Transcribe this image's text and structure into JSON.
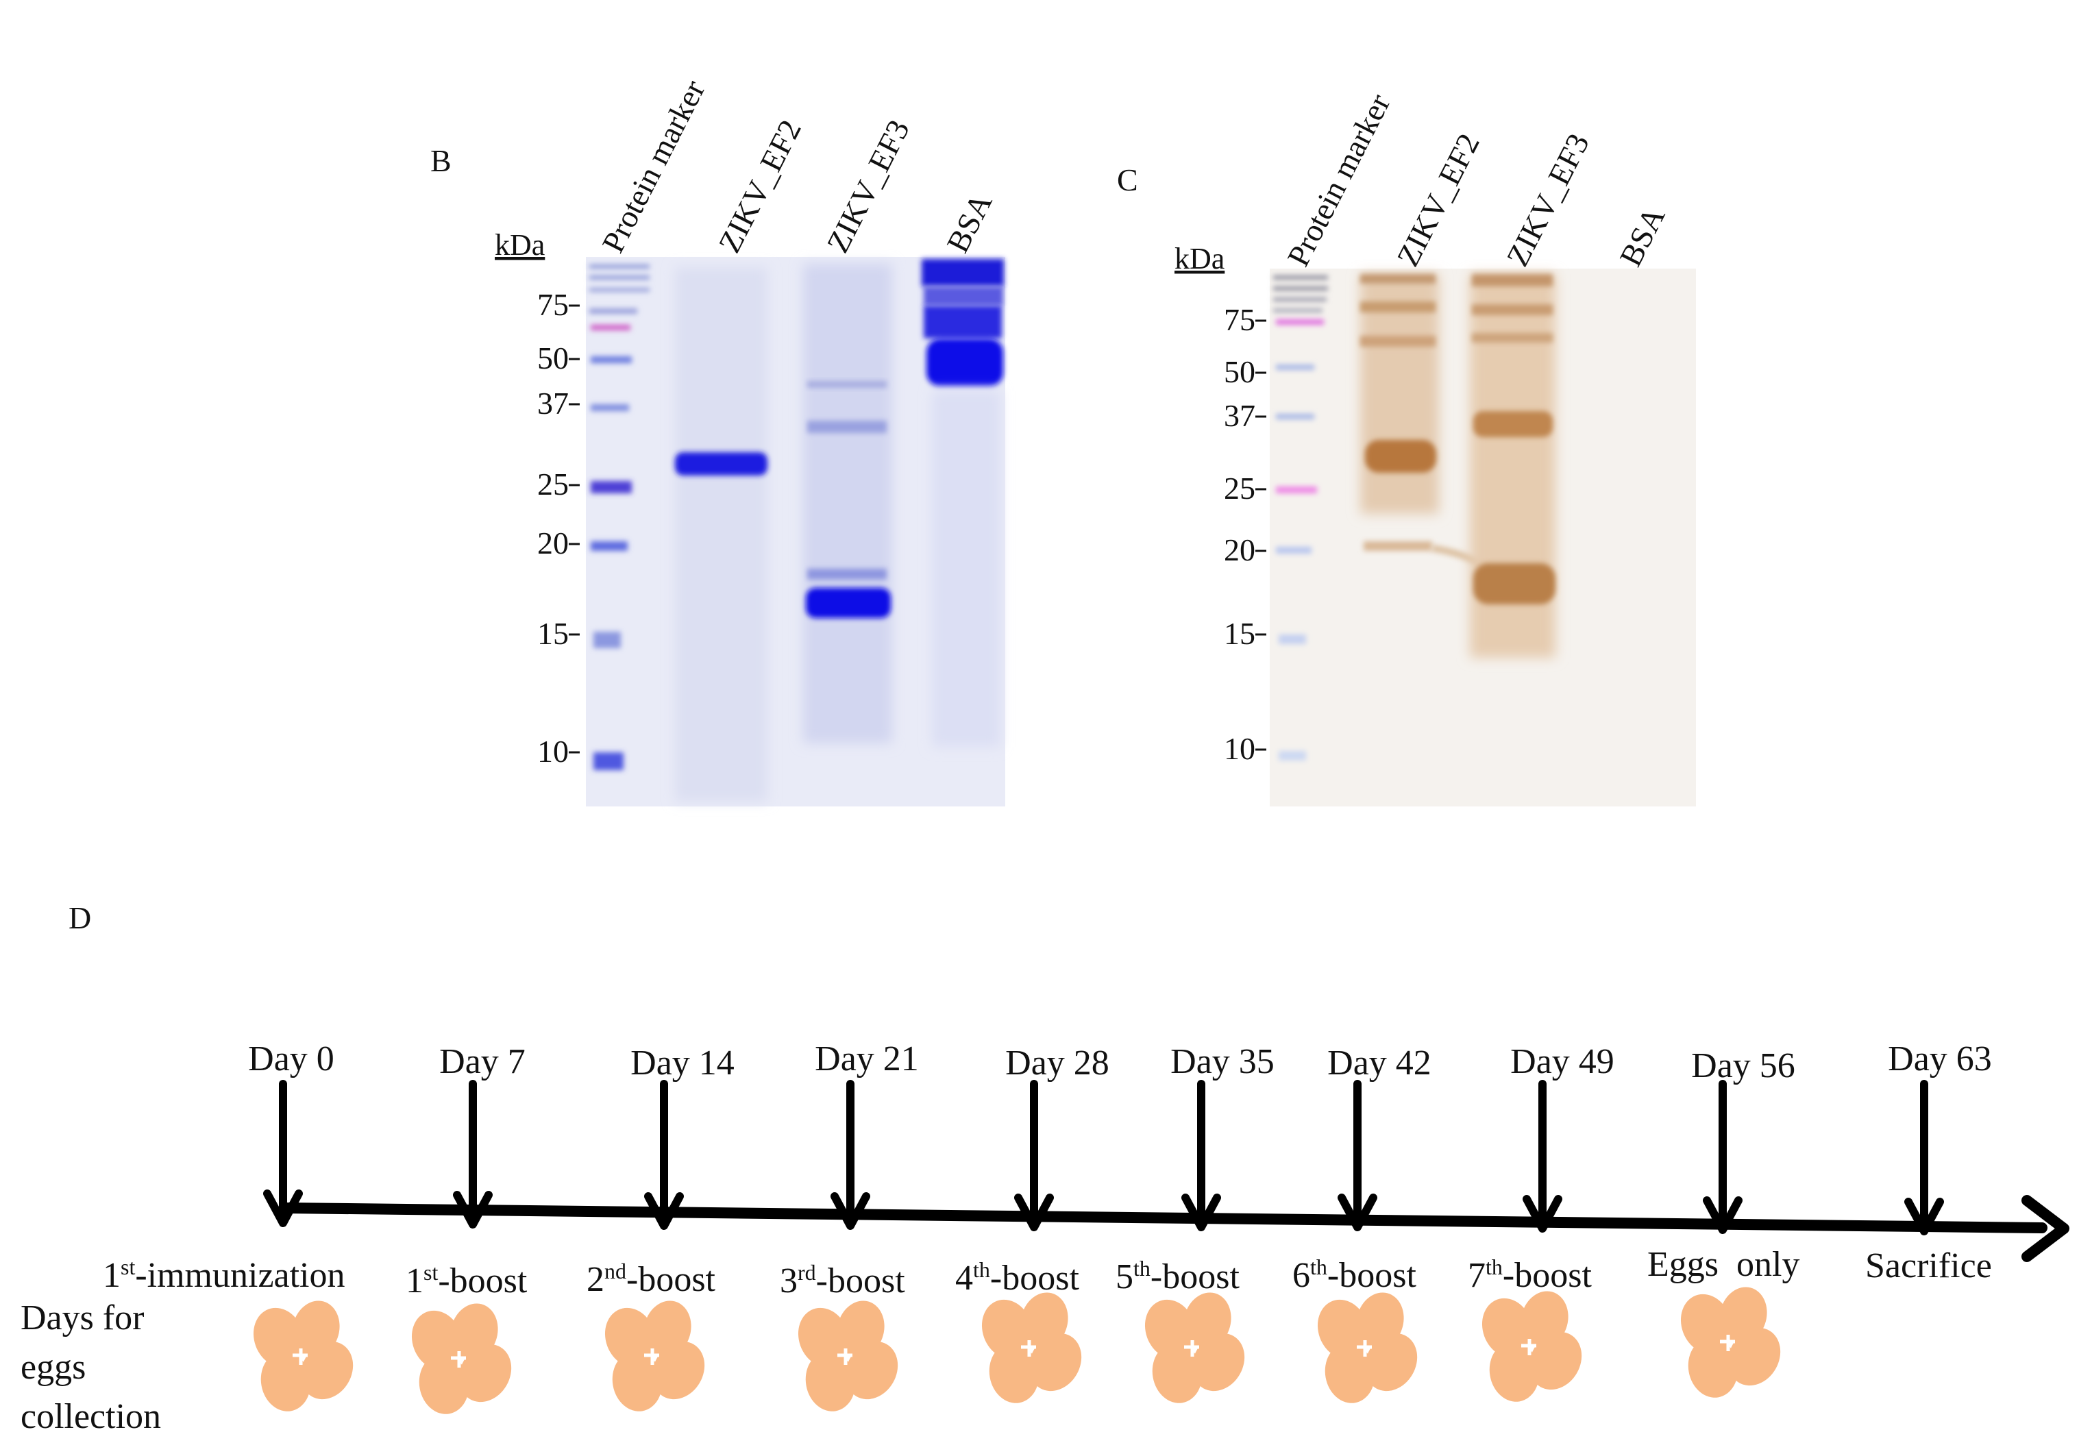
{
  "panels": {
    "B": {
      "letter": "B",
      "unit": "kDa",
      "lanes": [
        "Protein marker",
        "ZIKV_EF2",
        "ZIKV_EF3",
        "BSA"
      ],
      "markers": [
        "75",
        "50",
        "37",
        "25",
        "20",
        "15",
        "10"
      ],
      "stain_color": "#1a1ae0"
    },
    "C": {
      "letter": "C",
      "unit": "kDa",
      "lanes": [
        "Protein marker",
        "ZIKV_EF2",
        "ZIKV_EF3",
        "BSA"
      ],
      "markers": [
        "75",
        "50",
        "37",
        "25",
        "20",
        "15",
        "10"
      ],
      "stain_color": "#b7773e"
    },
    "D": {
      "letter": "D",
      "day_labels": [
        "Day 0",
        "Day 7",
        "Day 14",
        "Day 21",
        "Day 28",
        "Day 35",
        "Day 42",
        "Day 49",
        "Day 56",
        "Day 63"
      ],
      "events": [
        {
          "base": "1",
          "sup": "st",
          "rest": "-immunization"
        },
        {
          "base": "1",
          "sup": "st",
          "rest": "-boost"
        },
        {
          "base": "2",
          "sup": "nd",
          "rest": "-boost"
        },
        {
          "base": "3",
          "sup": "rd",
          "rest": "-boost"
        },
        {
          "base": "4",
          "sup": "th",
          "rest": "-boost"
        },
        {
          "base": "5",
          "sup": "th",
          "rest": "-boost"
        },
        {
          "base": "6",
          "sup": "th",
          "rest": "-boost"
        },
        {
          "base": "7",
          "sup": "th",
          "rest": "-boost"
        },
        {
          "base": "",
          "sup": "",
          "rest": "Eggs  only"
        },
        {
          "base": "",
          "sup": "",
          "rest": "Sacrifice"
        }
      ],
      "eggs_label": [
        "Days for",
        "eggs",
        "collection"
      ],
      "egg_icon": "egg-cluster-icon",
      "egg_color": "#f8b884"
    }
  }
}
